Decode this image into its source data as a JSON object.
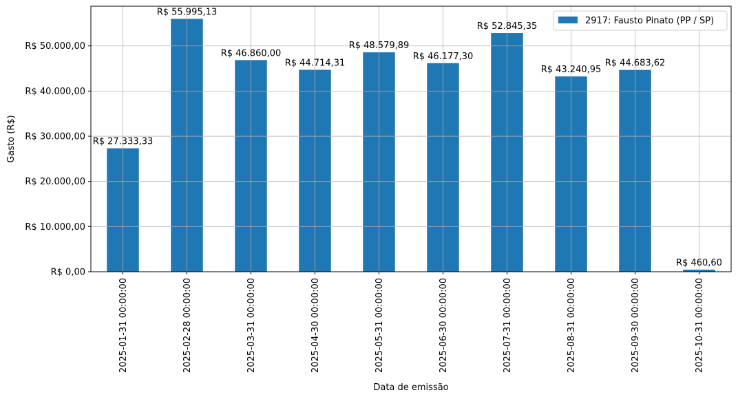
{
  "chart_data": {
    "type": "bar",
    "title": "",
    "xlabel": "Data de emissão",
    "ylabel": "Gasto (R$)",
    "categories": [
      "2025-01-31 00:00:00",
      "2025-02-28 00:00:00",
      "2025-03-31 00:00:00",
      "2025-04-30 00:00:00",
      "2025-05-31 00:00:00",
      "2025-06-30 00:00:00",
      "2025-07-31 00:00:00",
      "2025-08-31 00:00:00",
      "2025-09-30 00:00:00",
      "2025-10-31 00:00:00"
    ],
    "series": [
      {
        "name": "2917: Fausto Pinato (PP / SP)",
        "color": "#1f77b4",
        "values": [
          27333.33,
          55995.13,
          46860.0,
          44714.31,
          48579.89,
          46177.3,
          52845.35,
          43240.95,
          44683.62,
          460.6
        ],
        "labels": [
          "R$ 27.333,33",
          "R$ 55.995,13",
          "R$ 46.860,00",
          "R$ 44.714,31",
          "R$ 48.579,89",
          "R$ 46.177,30",
          "R$ 52.845,35",
          "R$ 43.240,95",
          "R$ 44.683,62",
          "R$ 460,60"
        ]
      }
    ],
    "ylim": [
      0,
      58795
    ],
    "yticks": [
      0,
      10000,
      20000,
      30000,
      40000,
      50000
    ],
    "ytick_labels": [
      "R$ 0,00",
      "R$ 10.000,00",
      "R$ 20.000,00",
      "R$ 30.000,00",
      "R$ 40.000,00",
      "R$ 50.000,00"
    ],
    "grid": true,
    "legend_position": "top-right"
  }
}
